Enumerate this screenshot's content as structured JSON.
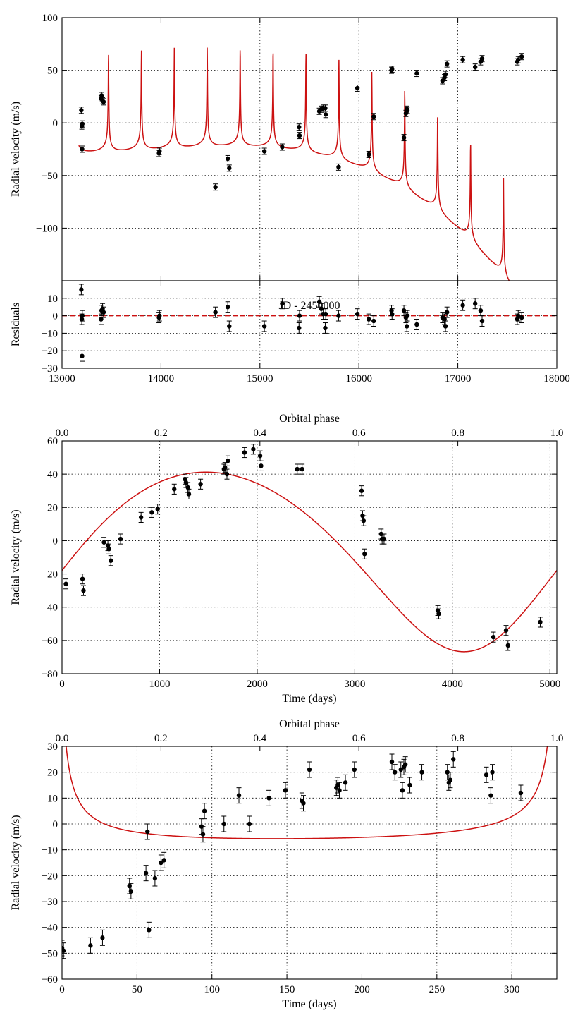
{
  "chart_data": [
    {
      "id": "panel-a",
      "type": "scatter",
      "title": "",
      "xlabel": "JD - 2450000",
      "ylabel": "Radial velocity (m/s)",
      "xlim": [
        13000,
        18000
      ],
      "ylim": [
        -150,
        100
      ],
      "xticks": [
        13000,
        14000,
        15000,
        16000,
        17000,
        18000
      ],
      "yticks": [
        -100,
        -50,
        0,
        50,
        100
      ],
      "grid": true,
      "x_ticklabels_hidden": true,
      "data": {
        "x": [
          13195,
          13200,
          13203,
          13205,
          13395,
          13400,
          13410,
          13420,
          13980,
          13985,
          14550,
          14675,
          14690,
          15045,
          15225,
          15395,
          15400,
          15600,
          15620,
          15640,
          15660,
          15665,
          15795,
          15985,
          16100,
          16150,
          16330,
          16335,
          16455,
          16475,
          16485,
          16490,
          16585,
          16845,
          16865,
          16875,
          16890,
          17050,
          17175,
          17230,
          17245,
          17600,
          17610,
          17645
        ],
        "y": [
          12,
          -3,
          -25,
          -1,
          23,
          26,
          21,
          20,
          -29,
          -27,
          -61,
          -34,
          -43,
          -27,
          -23,
          -4,
          -12,
          11,
          13,
          14,
          14,
          8,
          -42,
          33,
          -30,
          6,
          50,
          51,
          -14,
          9,
          13,
          12,
          47,
          40,
          43,
          46,
          56,
          60,
          53,
          58,
          61,
          58,
          60,
          63
        ],
        "yerr": [
          3,
          3,
          3,
          3,
          3,
          3,
          3,
          3,
          3,
          3,
          3,
          3,
          3,
          3,
          3,
          3,
          3,
          3,
          3,
          3,
          3,
          3,
          3,
          3,
          3,
          3,
          3,
          3,
          3,
          3,
          3,
          3,
          3,
          3,
          3,
          3,
          3,
          3,
          3,
          3,
          3,
          3,
          3,
          3
        ]
      },
      "model": {
        "name": "Keplerian + trend",
        "period": 332.6,
        "periastron_x": 13470,
        "eccentricity": 0.88,
        "omega_deg": 3,
        "K": 47,
        "trend_origin_x": 13170,
        "trend_offset": -21,
        "trend_linear": 0.0,
        "trend_quadratic": 7.5e-06,
        "trend_cubic": -3.25e-09,
        "x_range": [
          13170,
          17650
        ]
      }
    },
    {
      "id": "panel-b",
      "type": "scatter",
      "title": "",
      "xlabel": "",
      "ylabel": "Residuals",
      "xlim": [
        13000,
        18000
      ],
      "ylim": [
        -30,
        20
      ],
      "xticks": [
        13000,
        14000,
        15000,
        16000,
        17000,
        18000
      ],
      "yticks": [
        -30,
        -20,
        -10,
        0,
        10
      ],
      "xticklabels": [
        "13000",
        "14000",
        "15000",
        "16000",
        "17000",
        "18000"
      ],
      "grid": true,
      "zero_line": 0,
      "data": {
        "x": [
          13195,
          13200,
          13203,
          13205,
          13395,
          13400,
          13410,
          13420,
          13980,
          13985,
          14550,
          14675,
          14690,
          15045,
          15225,
          15395,
          15400,
          15600,
          15620,
          15640,
          15660,
          15665,
          15795,
          15985,
          16100,
          16150,
          16330,
          16335,
          16455,
          16475,
          16485,
          16490,
          16585,
          16845,
          16865,
          16875,
          16890,
          17050,
          17175,
          17230,
          17245,
          17600,
          17610,
          17645
        ],
        "y": [
          15,
          -2,
          -23,
          0,
          -2,
          3,
          4,
          2,
          -1,
          0,
          2,
          5,
          -6,
          -6,
          7,
          -7,
          0,
          8,
          4,
          1,
          -7,
          1,
          0,
          1,
          -2,
          -3,
          3,
          1,
          3,
          -1,
          -6,
          0,
          -5,
          -1,
          -2,
          -6,
          2,
          6,
          7,
          3,
          -3,
          -2,
          0,
          -1
        ],
        "yerr": [
          3,
          3,
          3,
          3,
          3,
          3,
          3,
          3,
          3,
          3,
          3,
          3,
          3,
          3,
          3,
          3,
          3,
          3,
          3,
          3,
          3,
          3,
          3,
          3,
          3,
          3,
          3,
          3,
          3,
          3,
          3,
          3,
          3,
          3,
          3,
          3,
          3,
          3,
          3,
          3,
          3,
          3,
          3,
          3
        ]
      }
    },
    {
      "id": "panel-c",
      "type": "scatter",
      "title": "",
      "xlabel": "Time (days)",
      "ylabel": "Radial velocity (m/s)",
      "xlim": [
        0,
        5070
      ],
      "ylim": [
        -80,
        60
      ],
      "xticks": [
        0,
        1000,
        2000,
        3000,
        4000,
        5000
      ],
      "yticks": [
        -80,
        -60,
        -40,
        -20,
        0,
        20,
        40,
        60
      ],
      "top_axis_label": "Orbital phase",
      "top_xticks": [
        0.0,
        0.2,
        0.4,
        0.6,
        0.8,
        1.0
      ],
      "top_xticklabels": [
        "0.0",
        "0.2",
        "0.4",
        "0.6",
        "0.8",
        "1.0"
      ],
      "grid": true,
      "data": {
        "x": [
          40,
          210,
          220,
          430,
          470,
          480,
          500,
          600,
          810,
          920,
          980,
          1150,
          1260,
          1270,
          1290,
          1300,
          1420,
          1660,
          1670,
          1690,
          1700,
          1870,
          1960,
          2030,
          2040,
          2410,
          2460,
          3070,
          3080,
          3090,
          3100,
          3270,
          3280,
          3300
        ],
        "y": [
          -26,
          -23,
          -30,
          -1,
          -3,
          -5,
          -12,
          1,
          14,
          17,
          19,
          31,
          37,
          35,
          32,
          28,
          34,
          43,
          44,
          40,
          48,
          53,
          55,
          51,
          45,
          43,
          43,
          30,
          15,
          12,
          -8,
          4,
          1,
          1
        ],
        "yerr": [
          3,
          3,
          3,
          3,
          3,
          3,
          3,
          3,
          3,
          3,
          3,
          3,
          3,
          3,
          3,
          3,
          3,
          3,
          3,
          3,
          3,
          3,
          3,
          3,
          3,
          3,
          3,
          3,
          3,
          3,
          3,
          3,
          3,
          3
        ]
      },
      "data_late": {
        "x": [
          3850,
          3860,
          4420,
          4550,
          4570,
          4900
        ],
        "y": [
          -42,
          -44,
          -58,
          -54,
          -63,
          -49
        ],
        "yerr": [
          3,
          3,
          3,
          3,
          3,
          3
        ]
      },
      "model": {
        "name": "Keplerian",
        "period": 5070,
        "t_periastron": 4280,
        "eccentricity": 0.13,
        "omega_deg": 195,
        "K": 54,
        "offset": -6,
        "x_range": [
          0,
          5070
        ]
      }
    },
    {
      "id": "panel-d",
      "type": "scatter",
      "title": "",
      "xlabel": "Time (days)",
      "ylabel": "Radial velocity (m/s)",
      "xlim": [
        0,
        330
      ],
      "ylim": [
        -60,
        30
      ],
      "xticks": [
        0,
        50,
        100,
        150,
        200,
        250,
        300
      ],
      "yticks": [
        -60,
        -50,
        -40,
        -30,
        -20,
        -10,
        0,
        10,
        20,
        30
      ],
      "top_axis_label": "Orbital phase",
      "top_xticks": [
        0.0,
        0.2,
        0.4,
        0.6,
        0.8,
        1.0
      ],
      "top_xticklabels": [
        "0.0",
        "0.2",
        "0.4",
        "0.6",
        "0.8",
        "1.0"
      ],
      "grid": true,
      "data": {
        "x": [
          0,
          1,
          19,
          27,
          45,
          46,
          56,
          57,
          58,
          62,
          66,
          68,
          93,
          94,
          95,
          108,
          118,
          125,
          138,
          149,
          160,
          161,
          165,
          183,
          184,
          185,
          189,
          195,
          220,
          222,
          226,
          227,
          228,
          229,
          232,
          240,
          257,
          258,
          259,
          261,
          283,
          286,
          287,
          306
        ],
        "y": [
          -48,
          -49,
          -47,
          -44,
          -24,
          -26,
          -19,
          -3,
          -41,
          -21,
          -15,
          -14,
          -1,
          -4,
          5,
          0,
          11,
          0,
          10,
          13,
          9,
          8,
          21,
          14,
          15,
          13,
          16,
          21,
          24,
          20,
          21,
          13,
          22,
          23,
          15,
          20,
          20,
          16,
          17,
          25,
          19,
          11,
          20,
          12
        ],
        "yerr": [
          3,
          3,
          3,
          3,
          3,
          3,
          3,
          3,
          3,
          3,
          3,
          3,
          3,
          3,
          3,
          3,
          3,
          3,
          3,
          3,
          3,
          3,
          3,
          3,
          3,
          3,
          3,
          3,
          3,
          3,
          3,
          3,
          3,
          3,
          3,
          3,
          3,
          3,
          3,
          3,
          3,
          3,
          3,
          3
        ]
      },
      "model": {
        "name": "Keplerian",
        "period": 332.6,
        "t_periastron": 330,
        "eccentricity": 0.88,
        "omega_deg": 3,
        "K": 47,
        "offset": 0,
        "x_range": [
          0,
          330
        ]
      }
    }
  ]
}
